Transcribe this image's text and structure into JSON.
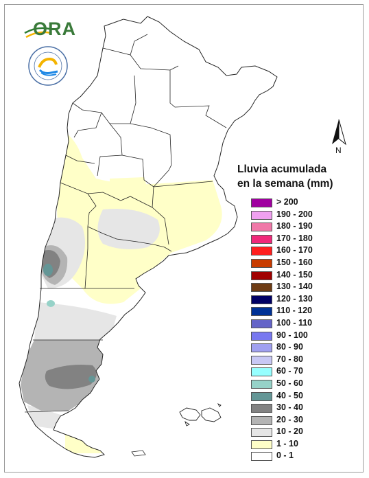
{
  "logo": {
    "text": "ORA"
  },
  "seal": {
    "name": "smn-argentina-seal"
  },
  "north_arrow": {
    "label": "N"
  },
  "legend": {
    "title_line1": "Lluvia acumulada",
    "title_line2": "en la semana (mm)",
    "items": [
      {
        "label": "> 200",
        "color": "#a000a0"
      },
      {
        "label": "190 - 200",
        "color": "#f0a0f0"
      },
      {
        "label": "180 - 190",
        "color": "#f078a8"
      },
      {
        "label": "170 - 180",
        "color": "#f0287a"
      },
      {
        "label": "160 - 170",
        "color": "#ff1e1e"
      },
      {
        "label": "150 - 160",
        "color": "#c83c00"
      },
      {
        "label": "140 - 150",
        "color": "#a00000"
      },
      {
        "label": "130 - 140",
        "color": "#6e3c14"
      },
      {
        "label": "120 - 130",
        "color": "#000064"
      },
      {
        "label": "110 - 120",
        "color": "#003296"
      },
      {
        "label": "100 - 110",
        "color": "#6464c8"
      },
      {
        "label": "90 - 100",
        "color": "#7878f0"
      },
      {
        "label": "80 - 90",
        "color": "#a0a0f0"
      },
      {
        "label": "70 - 80",
        "color": "#c8c8f5"
      },
      {
        "label": "60 - 70",
        "color": "#96ffff"
      },
      {
        "label": "50 - 60",
        "color": "#96d2c8"
      },
      {
        "label": "40 - 50",
        "color": "#649696"
      },
      {
        "label": "30 - 40",
        "color": "#828282"
      },
      {
        "label": "20 - 30",
        "color": "#b4b4b4"
      },
      {
        "label": "10 - 20",
        "color": "#e6e6e6"
      },
      {
        "label": "1 - 10",
        "color": "#ffffc8"
      },
      {
        "label": "0 - 1",
        "color": "#ffffff"
      }
    ]
  }
}
